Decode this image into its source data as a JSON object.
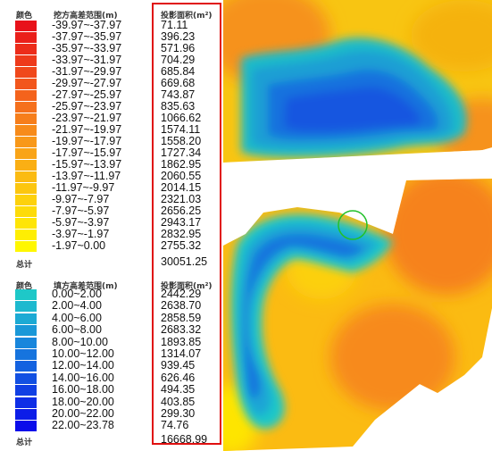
{
  "cut": {
    "color_header": "颜色",
    "range_header": "挖方高差范围(m)",
    "area_header": "投影面积(m²)",
    "rows": [
      {
        "range": "-39.97~-37.97",
        "area": "71.11",
        "color": "#e8121a"
      },
      {
        "range": "-37.97~-35.97",
        "area": "396.23",
        "color": "#ea1f1a"
      },
      {
        "range": "-35.97~-33.97",
        "area": "571.96",
        "color": "#ec2c1a"
      },
      {
        "range": "-33.97~-31.97",
        "area": "704.29",
        "color": "#ee3a1b"
      },
      {
        "range": "-31.97~-29.97",
        "area": "685.84",
        "color": "#f0481b"
      },
      {
        "range": "-29.97~-27.97",
        "area": "669.68",
        "color": "#f2561c"
      },
      {
        "range": "-27.97~-25.97",
        "area": "743.87",
        "color": "#f4631c"
      },
      {
        "range": "-25.97~-23.97",
        "area": "835.63",
        "color": "#f5701c"
      },
      {
        "range": "-23.97~-21.97",
        "area": "1066.62",
        "color": "#f67e1b"
      },
      {
        "range": "-21.97~-19.97",
        "area": "1574.11",
        "color": "#f78b1a"
      },
      {
        "range": "-19.97~-17.97",
        "area": "1558.20",
        "color": "#f89819"
      },
      {
        "range": "-17.97~-15.97",
        "area": "1727.34",
        "color": "#f9a417"
      },
      {
        "range": "-15.97~-13.97",
        "area": "1862.95",
        "color": "#faaf14"
      },
      {
        "range": "-13.97~-11.97",
        "area": "2060.55",
        "color": "#fbbb12"
      },
      {
        "range": "-11.97~-9.97",
        "area": "2014.15",
        "color": "#fcc60f"
      },
      {
        "range": "-9.97~-7.97",
        "area": "2321.03",
        "color": "#fdd10c"
      },
      {
        "range": "-7.97~-5.97",
        "area": "2656.25",
        "color": "#fddb09"
      },
      {
        "range": "-5.97~-3.97",
        "area": "2943.17",
        "color": "#fee506"
      },
      {
        "range": "-3.97~-1.97",
        "area": "2832.95",
        "color": "#feee03"
      },
      {
        "range": "-1.97~0.00",
        "area": "2755.32",
        "color": "#fff700"
      }
    ],
    "total_label": "总计",
    "total_value": "30051.25"
  },
  "fill": {
    "color_header": "颜色",
    "range_header": "填方高差范围(m)",
    "area_header": "投影面积(m²)",
    "rows": [
      {
        "range": "0.00~2.00",
        "area": "2442.29",
        "color": "#1ec8c8"
      },
      {
        "range": "2.00~4.00",
        "area": "2638.70",
        "color": "#1db9cf"
      },
      {
        "range": "4.00~6.00",
        "area": "2858.59",
        "color": "#1caad4"
      },
      {
        "range": "6.00~8.00",
        "area": "2683.32",
        "color": "#1a98d8"
      },
      {
        "range": "8.00~10.00",
        "area": "1893.85",
        "color": "#1886dc"
      },
      {
        "range": "10.00~12.00",
        "area": "1314.07",
        "color": "#1674de"
      },
      {
        "range": "12.00~14.00",
        "area": "939.45",
        "color": "#1462e0"
      },
      {
        "range": "14.00~16.00",
        "area": "626.46",
        "color": "#1250e2"
      },
      {
        "range": "16.00~18.00",
        "area": "494.35",
        "color": "#103fe4"
      },
      {
        "range": "18.00~20.00",
        "area": "403.85",
        "color": "#0e2ee6"
      },
      {
        "range": "20.00~22.00",
        "area": "299.30",
        "color": "#0c1de8"
      },
      {
        "range": "22.00~23.78",
        "area": "74.76",
        "color": "#0a0cea"
      }
    ],
    "total_label": "总计",
    "total_value": "16668.99"
  },
  "colors": {
    "highlight_box": "#e01010",
    "marker_circle": "#22c02a"
  }
}
